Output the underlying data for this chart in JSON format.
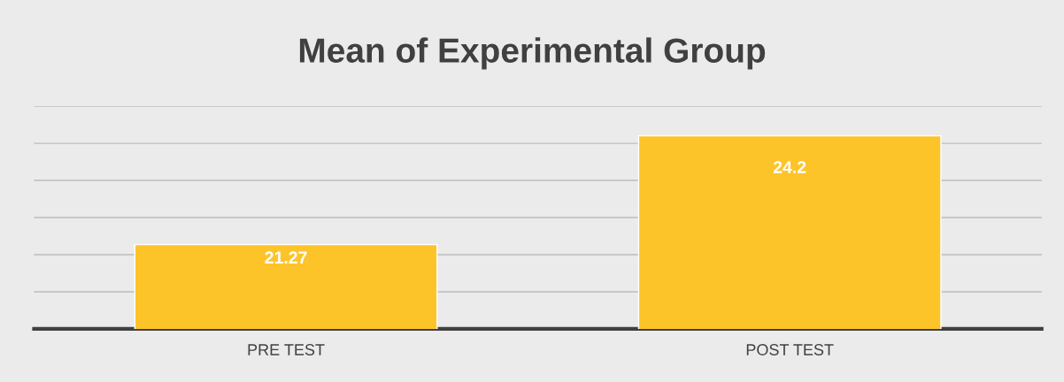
{
  "chart_data": {
    "type": "bar",
    "title": "Mean of Experimental Group",
    "categories": [
      "PRE TEST",
      "POST TEST"
    ],
    "values": [
      21.27,
      24.2
    ],
    "color": "#fdc42a",
    "ylim": [
      19,
      25
    ],
    "yticks": [
      {
        "value": 19,
        "label": null
      },
      {
        "value": 20,
        "label": null
      },
      {
        "value": 21,
        "label": null
      },
      {
        "value": 22,
        "label": null
      },
      {
        "value": 23,
        "label": null
      },
      {
        "value": 24,
        "label": null
      },
      {
        "value": 25,
        "label": null
      }
    ],
    "tick_labels": "x",
    "grid": "y",
    "data_labels": true,
    "legend": false
  }
}
